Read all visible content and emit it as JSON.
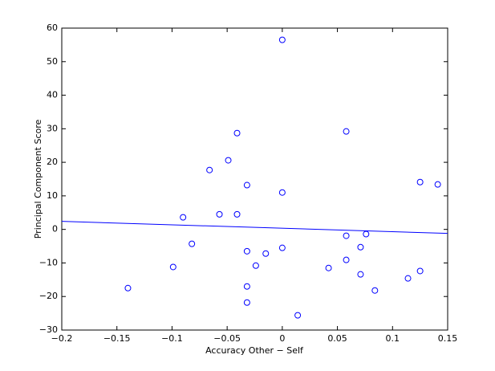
{
  "chart_data": {
    "type": "scatter",
    "xlabel": "Accuracy Other − Self",
    "ylabel": "Principal Component Score",
    "xlim": [
      -0.2,
      0.15
    ],
    "ylim": [
      -30,
      60
    ],
    "xticks": [
      {
        "value": -0.2,
        "label": "−0.2"
      },
      {
        "value": -0.15,
        "label": "−0.15"
      },
      {
        "value": -0.1,
        "label": "−0.1"
      },
      {
        "value": -0.05,
        "label": "−0.05"
      },
      0,
      0.05,
      0.1,
      0.15
    ],
    "yticks": [
      {
        "value": -30,
        "label": "−30"
      },
      {
        "value": -20,
        "label": "−20"
      },
      {
        "value": -10,
        "label": "−10"
      },
      0,
      10,
      20,
      30,
      40,
      50,
      60
    ],
    "series": [
      {
        "style": "marker",
        "color": "#0000ff",
        "x": [
          -0.14,
          -0.099,
          -0.09,
          -0.082,
          -0.066,
          -0.057,
          -0.049,
          -0.041,
          -0.041,
          -0.032,
          -0.032,
          -0.032,
          -0.032,
          -0.024,
          -0.015,
          0.0,
          0.0,
          0.0,
          0.014,
          0.042,
          0.058,
          0.058,
          0.058,
          0.071,
          0.071,
          0.076,
          0.084,
          0.114,
          0.125,
          0.125,
          0.141
        ],
        "values": [
          -17.5,
          -11.2,
          3.6,
          -4.3,
          17.7,
          4.5,
          20.6,
          28.7,
          4.5,
          13.2,
          -6.5,
          -17.0,
          -21.8,
          -10.8,
          -7.2,
          56.5,
          11.0,
          -5.5,
          -25.6,
          -11.5,
          29.2,
          -1.9,
          -9.1,
          -5.3,
          -13.4,
          -1.4,
          -18.2,
          -14.6,
          14.1,
          -12.4,
          13.4
        ]
      },
      {
        "style": "line",
        "color": "#0000ff",
        "x": [
          -0.2,
          0.15
        ],
        "values": [
          2.4,
          -1.2
        ]
      }
    ]
  }
}
